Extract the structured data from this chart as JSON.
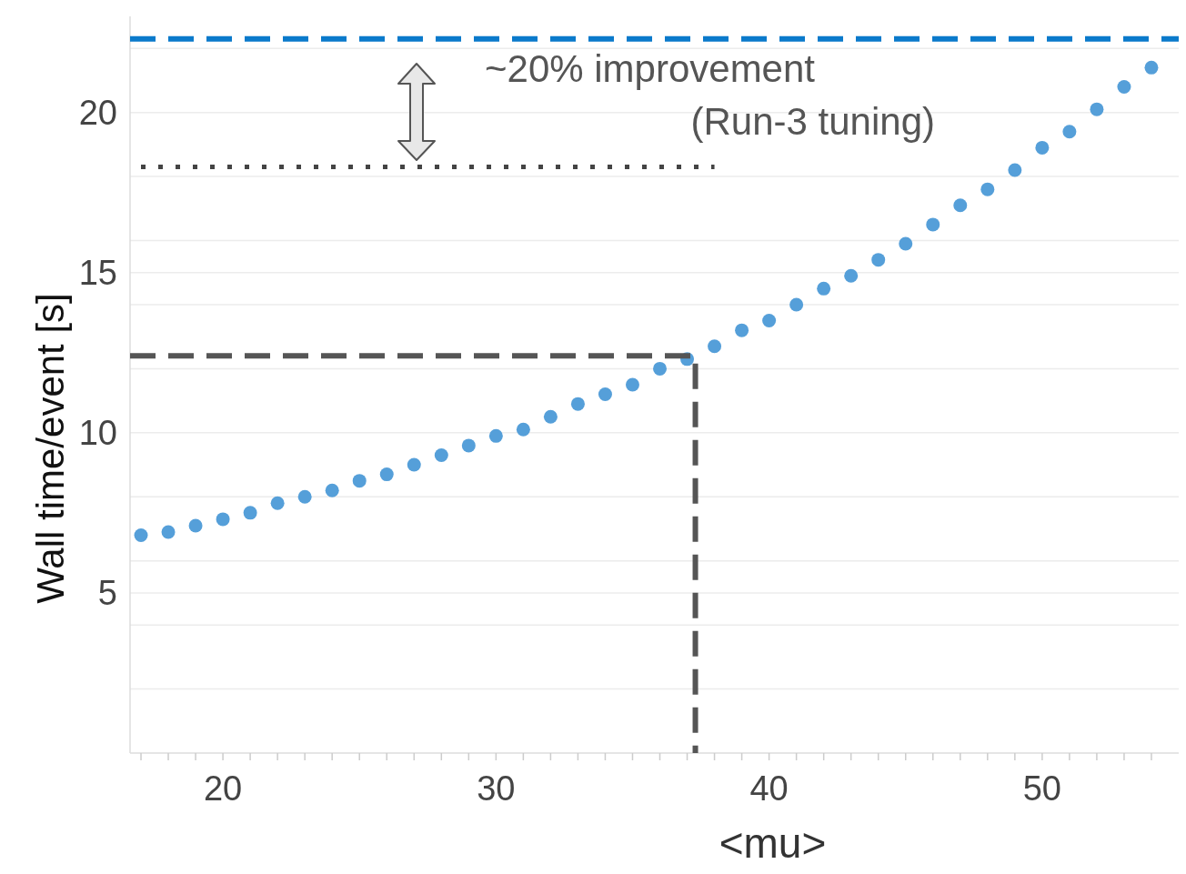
{
  "chart_data": {
    "type": "scatter",
    "xlabel": "<mu>",
    "ylabel": "Wall time/event [s]",
    "x": [
      17,
      18,
      19,
      20,
      21,
      22,
      23,
      24,
      25,
      26,
      27,
      28,
      29,
      30,
      31,
      32,
      33,
      34,
      35,
      36,
      37,
      38,
      39,
      40,
      41,
      42,
      43,
      44,
      45,
      46,
      47,
      48,
      49,
      50,
      51,
      52,
      53,
      54
    ],
    "series": [
      {
        "color": "#559fd9",
        "values": [
          6.8,
          6.9,
          7.1,
          7.3,
          7.5,
          7.8,
          8.0,
          8.2,
          8.5,
          8.7,
          9.0,
          9.3,
          9.6,
          9.9,
          10.1,
          10.5,
          10.9,
          11.2,
          11.5,
          12.0,
          12.3,
          12.7,
          13.2,
          13.5,
          14.0,
          14.5,
          14.9,
          15.4,
          15.9,
          16.5,
          17.1,
          17.6,
          18.2,
          18.9,
          19.4,
          20.1,
          20.8,
          21.4
        ]
      },
      {
        "type": "line",
        "marker": "none",
        "color": "#0a7acb",
        "line_style": "dashed",
        "x": [
          16.6,
          55
        ],
        "values": [
          22.3,
          22.3
        ]
      },
      {
        "type": "line",
        "marker": "none",
        "color": "#444444",
        "line_style": "dotted",
        "x": [
          17,
          38
        ],
        "values": [
          18.3,
          18.3
        ]
      },
      {
        "type": "line",
        "marker": "none",
        "color": "#555555",
        "line_style": "dashed",
        "x": [
          16.6,
          37.3,
          37.3
        ],
        "values": [
          12.4,
          12.4,
          0
        ]
      }
    ],
    "annotations": [
      "~20% improvement",
      "(Run-3 tuning)"
    ],
    "xlim": [
      16.6,
      55
    ],
    "ylim": [
      0,
      23
    ],
    "xticks": [
      {
        "value": 17,
        "label": null
      },
      {
        "value": 18,
        "label": null
      },
      {
        "value": 19,
        "label": null
      },
      20,
      {
        "value": 21,
        "label": null
      },
      {
        "value": 22,
        "label": null
      },
      {
        "value": 23,
        "label": null
      },
      {
        "value": 24,
        "label": null
      },
      {
        "value": 25,
        "label": null
      },
      {
        "value": 26,
        "label": null
      },
      {
        "value": 27,
        "label": null
      },
      {
        "value": 28,
        "label": null
      },
      {
        "value": 29,
        "label": null
      },
      30,
      {
        "value": 31,
        "label": null
      },
      {
        "value": 32,
        "label": null
      },
      {
        "value": 33,
        "label": null
      },
      {
        "value": 34,
        "label": null
      },
      {
        "value": 35,
        "label": null
      },
      {
        "value": 36,
        "label": null
      },
      {
        "value": 37,
        "label": null
      },
      {
        "value": 38,
        "label": null
      },
      {
        "value": 39,
        "label": null
      },
      40,
      {
        "value": 41,
        "label": null
      },
      {
        "value": 42,
        "label": null
      },
      {
        "value": 43,
        "label": null
      },
      {
        "value": 44,
        "label": null
      },
      {
        "value": 45,
        "label": null
      },
      {
        "value": 46,
        "label": null
      },
      {
        "value": 47,
        "label": null
      },
      {
        "value": 48,
        "label": null
      },
      {
        "value": 49,
        "label": null
      },
      50,
      {
        "value": 51,
        "label": null
      },
      {
        "value": 52,
        "label": null
      },
      {
        "value": 53,
        "label": null
      },
      {
        "value": 54,
        "label": null
      }
    ],
    "yticks": [
      {
        "value": 2,
        "label": null
      },
      {
        "value": 4,
        "label": null
      },
      5,
      {
        "value": 6,
        "label": null
      },
      {
        "value": 8,
        "label": null
      },
      10,
      {
        "value": 12,
        "label": null
      },
      {
        "value": 14,
        "label": null
      },
      15,
      {
        "value": 16,
        "label": null
      },
      {
        "value": 18,
        "label": null
      },
      20,
      {
        "value": 22,
        "label": null
      }
    ],
    "grid": "y",
    "marker": "circle"
  }
}
